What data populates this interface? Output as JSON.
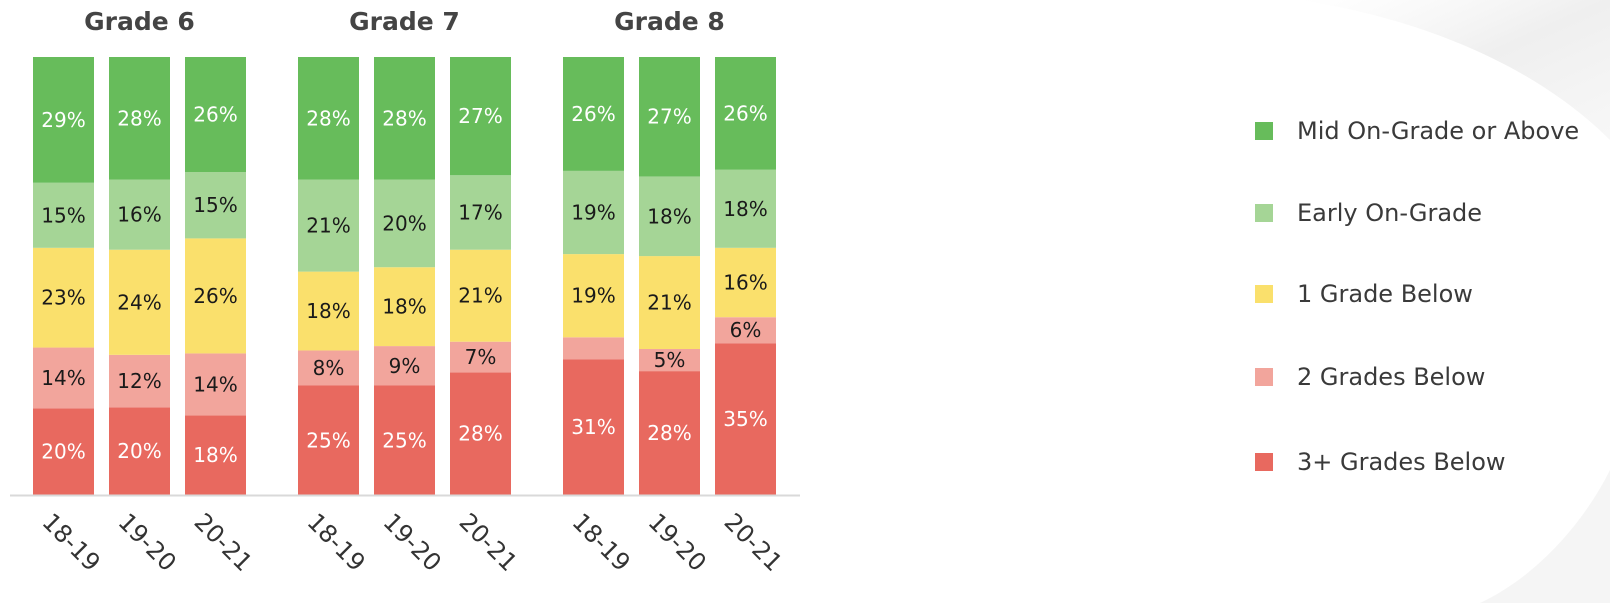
{
  "chart_data": {
    "type": "bar",
    "stacked": true,
    "normalized": true,
    "groups": [
      "Grade 6",
      "Grade 7",
      "Grade 8"
    ],
    "categories": [
      "18-19",
      "19-20",
      "20-21"
    ],
    "series": [
      {
        "name": "3+ Grades Below",
        "color": "#e8695f",
        "values": [
          [
            20,
            20,
            18
          ],
          [
            25,
            25,
            28
          ],
          [
            31,
            28,
            35
          ]
        ],
        "labels": [
          [
            "20%",
            "20%",
            "18%"
          ],
          [
            "25%",
            "25%",
            "28%"
          ],
          [
            "31%",
            "28%",
            "35%"
          ]
        ],
        "label_color": "#ffffff"
      },
      {
        "name": "2 Grades Below",
        "color": "#f2a59c",
        "values": [
          [
            14,
            12,
            14
          ],
          [
            8,
            9,
            7
          ],
          [
            5,
            5,
            6
          ]
        ],
        "labels": [
          [
            "14%",
            "12%",
            "14%"
          ],
          [
            "8%",
            "9%",
            "7%"
          ],
          [
            "",
            "5%",
            "6%"
          ]
        ],
        "label_color": "#1a1a1a"
      },
      {
        "name": "1 Grade Below",
        "color": "#fae06c",
        "values": [
          [
            23,
            24,
            26
          ],
          [
            18,
            18,
            21
          ],
          [
            19,
            21,
            16
          ]
        ],
        "labels": [
          [
            "23%",
            "24%",
            "26%"
          ],
          [
            "18%",
            "18%",
            "21%"
          ],
          [
            "19%",
            "21%",
            "16%"
          ]
        ],
        "label_color": "#1a1a1a"
      },
      {
        "name": "Early On-Grade",
        "color": "#a5d596",
        "values": [
          [
            15,
            16,
            15
          ],
          [
            21,
            20,
            17
          ],
          [
            19,
            18,
            18
          ]
        ],
        "labels": [
          [
            "15%",
            "16%",
            "15%"
          ],
          [
            "21%",
            "20%",
            "17%"
          ],
          [
            "19%",
            "18%",
            "18%"
          ]
        ],
        "label_color": "#1a1a1a"
      },
      {
        "name": "Mid On-Grade or Above",
        "color": "#67bc5b",
        "values": [
          [
            29,
            28,
            26
          ],
          [
            28,
            28,
            27
          ],
          [
            26,
            27,
            26
          ]
        ],
        "labels": [
          [
            "29%",
            "28%",
            "26%"
          ],
          [
            "28%",
            "28%",
            "27%"
          ],
          [
            "26%",
            "27%",
            "26%"
          ]
        ],
        "label_color": "#ffffff"
      }
    ],
    "legend_order": [
      "Mid On-Grade or Above",
      "Early On-Grade",
      "1 Grade Below",
      "2 Grades Below",
      "3+ Grades Below"
    ],
    "legend_position": "right",
    "ylim": [
      0,
      100
    ],
    "grid": false
  }
}
